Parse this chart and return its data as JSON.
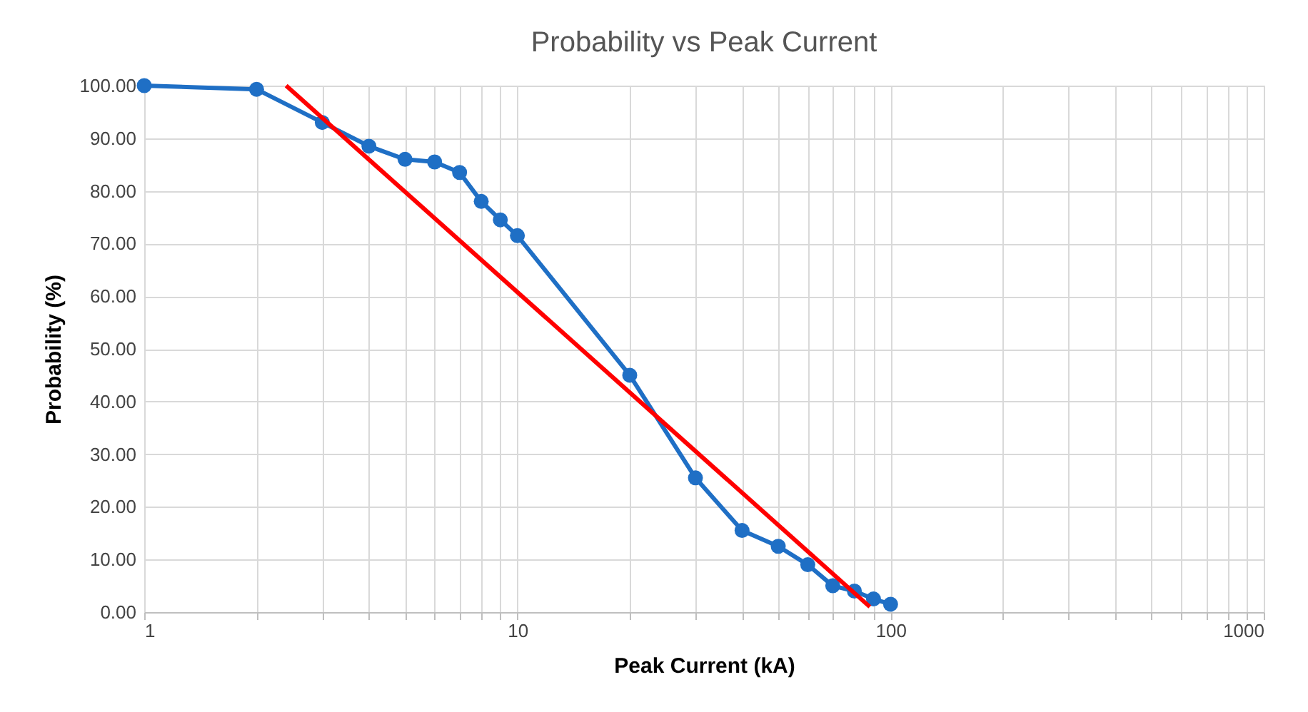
{
  "chart_data": {
    "type": "line",
    "title": "Probability vs Peak Current",
    "xlabel": "Peak Current (kA)",
    "ylabel": "Probability (%)",
    "log": "x",
    "grid": true,
    "line_style": "solid",
    "xlim": [
      1,
      1000
    ],
    "ylim": [
      0,
      100
    ],
    "xticks": [
      1,
      {
        "value": 2,
        "label": null
      },
      {
        "value": 3,
        "label": null
      },
      {
        "value": 4,
        "label": null
      },
      {
        "value": 5,
        "label": null
      },
      {
        "value": 6,
        "label": null
      },
      {
        "value": 7,
        "label": null
      },
      {
        "value": 8,
        "label": null
      },
      {
        "value": 9,
        "label": null
      },
      10,
      {
        "value": 20,
        "label": null
      },
      {
        "value": 30,
        "label": null
      },
      {
        "value": 40,
        "label": null
      },
      {
        "value": 50,
        "label": null
      },
      {
        "value": 60,
        "label": null
      },
      {
        "value": 70,
        "label": null
      },
      {
        "value": 80,
        "label": null
      },
      {
        "value": 90,
        "label": null
      },
      100,
      {
        "value": 200,
        "label": null
      },
      {
        "value": 300,
        "label": null
      },
      {
        "value": 400,
        "label": null
      },
      {
        "value": 500,
        "label": null
      },
      {
        "value": 600,
        "label": null
      },
      {
        "value": 700,
        "label": null
      },
      {
        "value": 800,
        "label": null
      },
      {
        "value": 900,
        "label": null
      },
      1000
    ],
    "yticks": [
      {
        "value": 0,
        "label": "0.00"
      },
      {
        "value": 10,
        "label": "10.00"
      },
      {
        "value": 20,
        "label": "20.00"
      },
      {
        "value": 30,
        "label": "30.00"
      },
      {
        "value": 40,
        "label": "40.00"
      },
      {
        "value": 50,
        "label": "50.00"
      },
      {
        "value": 60,
        "label": "60.00"
      },
      {
        "value": 70,
        "label": "70.00"
      },
      {
        "value": 80,
        "label": "80.00"
      },
      {
        "value": 90,
        "label": "90.00"
      },
      {
        "value": 100,
        "label": "100.00"
      }
    ],
    "series": [
      {
        "color": "#1f6fc5",
        "marker": "circle",
        "x": [
          1,
          2,
          3,
          4,
          5,
          6,
          7,
          8,
          9,
          10,
          20,
          30,
          40,
          50,
          60,
          70,
          80,
          90,
          100
        ],
        "values": [
          100,
          99.3,
          93,
          88.5,
          86,
          85.5,
          83.5,
          78,
          74.5,
          71.5,
          45,
          25.5,
          15.5,
          12.5,
          9,
          5,
          4,
          2.5,
          1.5
        ]
      },
      {
        "color": "#ff0000",
        "marker": "none",
        "x": [
          2.4,
          88
        ],
        "values": [
          100,
          1
        ]
      }
    ]
  }
}
